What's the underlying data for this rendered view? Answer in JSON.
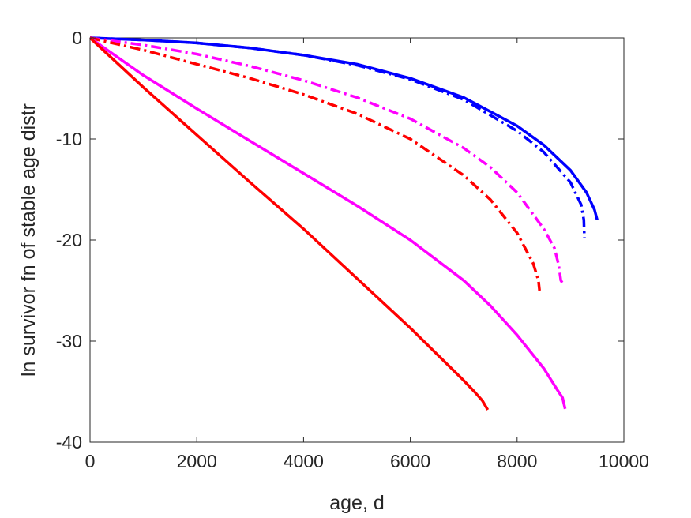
{
  "chart_data": {
    "type": "line",
    "xlabel": "age, d",
    "ylabel": "ln survivor fn of stable age distr",
    "xlim": [
      0,
      10000
    ],
    "ylim": [
      -40,
      0
    ],
    "xticks": [
      0,
      2000,
      4000,
      6000,
      8000,
      10000
    ],
    "yticks": [
      0,
      -10,
      -20,
      -30,
      -40
    ],
    "xtick_labels": [
      "0",
      "2000",
      "4000",
      "6000",
      "8000",
      "10000"
    ],
    "ytick_labels": [
      "0",
      "-10",
      "-20",
      "-30",
      "-40"
    ],
    "grid": false,
    "legend": "none",
    "series": [
      {
        "color": "#0000ff",
        "style": "solid",
        "points": [
          [
            0,
            0
          ],
          [
            1000,
            -0.2
          ],
          [
            2000,
            -0.5
          ],
          [
            3000,
            -1.0
          ],
          [
            4000,
            -1.7
          ],
          [
            5000,
            -2.6
          ],
          [
            6000,
            -4.0
          ],
          [
            7000,
            -5.9
          ],
          [
            8000,
            -8.7
          ],
          [
            8500,
            -10.6
          ],
          [
            9000,
            -13.1
          ],
          [
            9300,
            -15.3
          ],
          [
            9450,
            -17.0
          ],
          [
            9500,
            -18.0
          ]
        ]
      },
      {
        "color": "#0000ff",
        "style": "dashdot",
        "points": [
          [
            0,
            0
          ],
          [
            1000,
            -0.2
          ],
          [
            2000,
            -0.5
          ],
          [
            3000,
            -1.0
          ],
          [
            4000,
            -1.7
          ],
          [
            5000,
            -2.7
          ],
          [
            6000,
            -4.1
          ],
          [
            7000,
            -6.1
          ],
          [
            8000,
            -9.2
          ],
          [
            8500,
            -11.3
          ],
          [
            9000,
            -14.3
          ],
          [
            9200,
            -16.5
          ],
          [
            9250,
            -18.0
          ],
          [
            9260,
            -19.8
          ]
        ]
      },
      {
        "color": "#ff00ff",
        "style": "dashdot",
        "points": [
          [
            0,
            0
          ],
          [
            1000,
            -0.7
          ],
          [
            2000,
            -1.6
          ],
          [
            3000,
            -2.8
          ],
          [
            4000,
            -4.2
          ],
          [
            5000,
            -5.9
          ],
          [
            6000,
            -8.0
          ],
          [
            7000,
            -10.9
          ],
          [
            7500,
            -12.8
          ],
          [
            8000,
            -15.3
          ],
          [
            8500,
            -18.9
          ],
          [
            8700,
            -20.8
          ],
          [
            8780,
            -22.5
          ],
          [
            8820,
            -24.0
          ],
          [
            8880,
            -24.5
          ]
        ]
      },
      {
        "color": "#ff0000",
        "style": "dashdot",
        "points": [
          [
            0,
            0
          ],
          [
            1000,
            -1.2
          ],
          [
            2000,
            -2.6
          ],
          [
            3000,
            -4.0
          ],
          [
            4000,
            -5.6
          ],
          [
            5000,
            -7.5
          ],
          [
            6000,
            -10.0
          ],
          [
            7000,
            -13.6
          ],
          [
            7500,
            -16.0
          ],
          [
            8000,
            -19.3
          ],
          [
            8300,
            -22.3
          ],
          [
            8400,
            -24.0
          ],
          [
            8420,
            -25.0
          ]
        ]
      },
      {
        "color": "#ff00ff",
        "style": "solid",
        "points": [
          [
            0,
            0
          ],
          [
            1000,
            -3.7
          ],
          [
            2000,
            -7.0
          ],
          [
            3000,
            -10.2
          ],
          [
            4000,
            -13.4
          ],
          [
            5000,
            -16.6
          ],
          [
            6000,
            -20.0
          ],
          [
            7000,
            -24.0
          ],
          [
            7500,
            -26.5
          ],
          [
            8000,
            -29.4
          ],
          [
            8500,
            -32.7
          ],
          [
            8750,
            -34.8
          ],
          [
            8850,
            -35.6
          ],
          [
            8900,
            -36.7
          ]
        ]
      },
      {
        "color": "#ff0000",
        "style": "solid",
        "points": [
          [
            0,
            0
          ],
          [
            1000,
            -4.9
          ],
          [
            2000,
            -9.6
          ],
          [
            3000,
            -14.3
          ],
          [
            4000,
            -18.9
          ],
          [
            5000,
            -23.8
          ],
          [
            6000,
            -28.7
          ],
          [
            6500,
            -31.3
          ],
          [
            7000,
            -33.9
          ],
          [
            7200,
            -35.0
          ],
          [
            7350,
            -35.9
          ],
          [
            7450,
            -36.8
          ]
        ]
      }
    ]
  }
}
